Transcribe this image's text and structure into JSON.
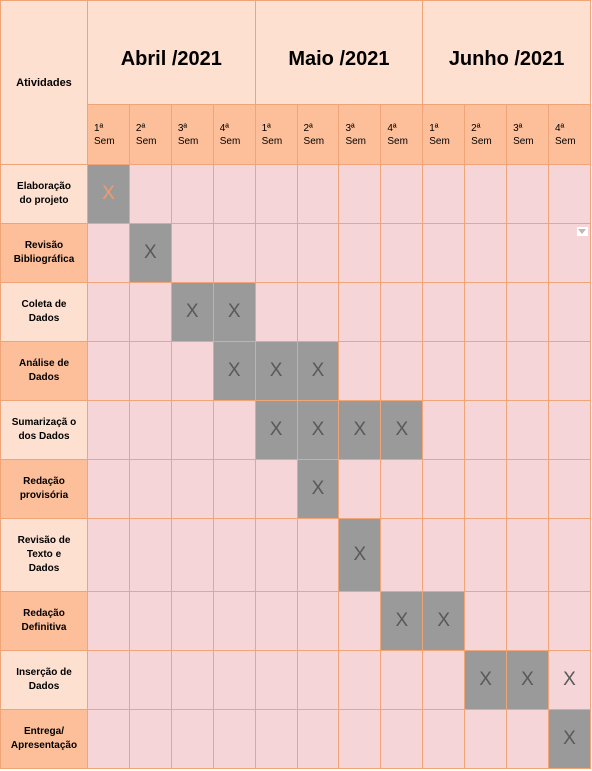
{
  "header": {
    "activities_label": "Atividades",
    "months": [
      "Abril /2021",
      "Maio /2021",
      "Junho /2021"
    ],
    "weeks": [
      {
        "ord": "1ª",
        "sem": "Sem"
      },
      {
        "ord": "2ª",
        "sem": "Sem"
      },
      {
        "ord": "3ª",
        "sem": "Sem"
      },
      {
        "ord": "4ª",
        "sem": "Sem"
      }
    ]
  },
  "mark": "X",
  "colors": {
    "header_light": "#fde0cf",
    "header_dark": "#fcbf9a",
    "cell": "#f5d5d8",
    "cell_marked": "#9a9a9a",
    "border": "#f0a579",
    "accent_mark": "#f29a6b"
  },
  "rows": [
    {
      "label": [
        "Elaboração",
        "do projeto"
      ],
      "marks": [
        0
      ],
      "accent": [
        0
      ]
    },
    {
      "label": [
        "Revisão",
        "Bibliográfica"
      ],
      "marks": [
        1
      ],
      "dropdown_col": 11
    },
    {
      "label": [
        "Coleta de",
        "Dados"
      ],
      "marks": [
        2,
        3
      ]
    },
    {
      "label": [
        "Análise de",
        "Dados"
      ],
      "marks": [
        3,
        4,
        5
      ]
    },
    {
      "label": [
        "Sumarizaçã o",
        "dos Dados"
      ],
      "marks": [
        4,
        5,
        6,
        7
      ]
    },
    {
      "label": [
        "Redação",
        "provisória"
      ],
      "marks": [
        5
      ]
    },
    {
      "label": [
        "Revisão de",
        "Texto e",
        "Dados"
      ],
      "marks": [
        6
      ]
    },
    {
      "label": [
        "Redação",
        "Definitiva"
      ],
      "marks": [
        7,
        8
      ]
    },
    {
      "label": [
        "Inserção de",
        "Dados"
      ],
      "marks": [
        9,
        10,
        11
      ],
      "unshaded": [
        11
      ]
    },
    {
      "label": [
        "Entrega/",
        "Apresentação"
      ],
      "marks": [
        11
      ]
    }
  ]
}
